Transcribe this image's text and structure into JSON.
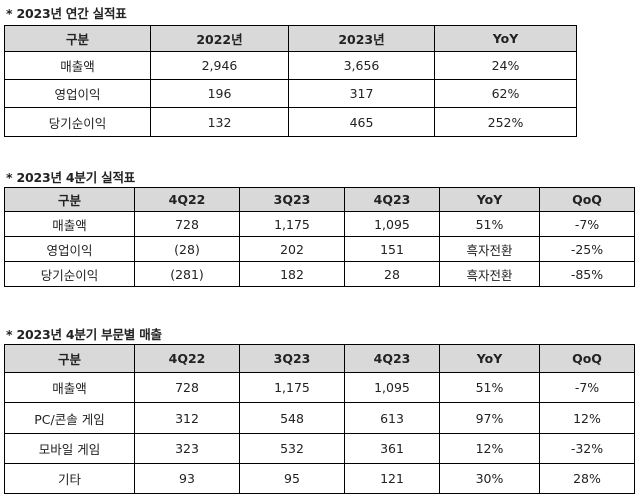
{
  "sections": [
    {
      "title": "* 2023년 연간 실적표",
      "headers": [
        "구분",
        "2022년",
        "2023년",
        "YoY"
      ],
      "rows": [
        [
          "매출액",
          "2,946",
          "3,656",
          "24%"
        ],
        [
          "영업이익",
          "196",
          "317",
          "62%"
        ],
        [
          "당기순이익",
          "132",
          "465",
          "252%"
        ]
      ]
    },
    {
      "title": "* 2023년 4분기 실적표",
      "headers": [
        "구분",
        "4Q22",
        "3Q23",
        "4Q23",
        "YoY",
        "QoQ"
      ],
      "rows": [
        [
          "매출액",
          "728",
          "1,175",
          "1,095",
          "51%",
          "-7%"
        ],
        [
          "영업이익",
          "(28)",
          "202",
          "151",
          "흑자전환",
          "-25%"
        ],
        [
          "당기순이익",
          "(281)",
          "182",
          "28",
          "흑자전환",
          "-85%"
        ]
      ]
    },
    {
      "title": "* 2023년 4분기 부문별 매출",
      "headers": [
        "구분",
        "4Q22",
        "3Q23",
        "4Q23",
        "YoY",
        "QoQ"
      ],
      "rows": [
        [
          "매출액",
          "728",
          "1,175",
          "1,095",
          "51%",
          "-7%"
        ],
        [
          "PC/콘솔 게임",
          "312",
          "548",
          "613",
          "97%",
          "12%"
        ],
        [
          "모바일 게임",
          "323",
          "532",
          "361",
          "12%",
          "-32%"
        ],
        [
          "기타",
          "93",
          "95",
          "121",
          "30%",
          "28%"
        ]
      ]
    }
  ]
}
